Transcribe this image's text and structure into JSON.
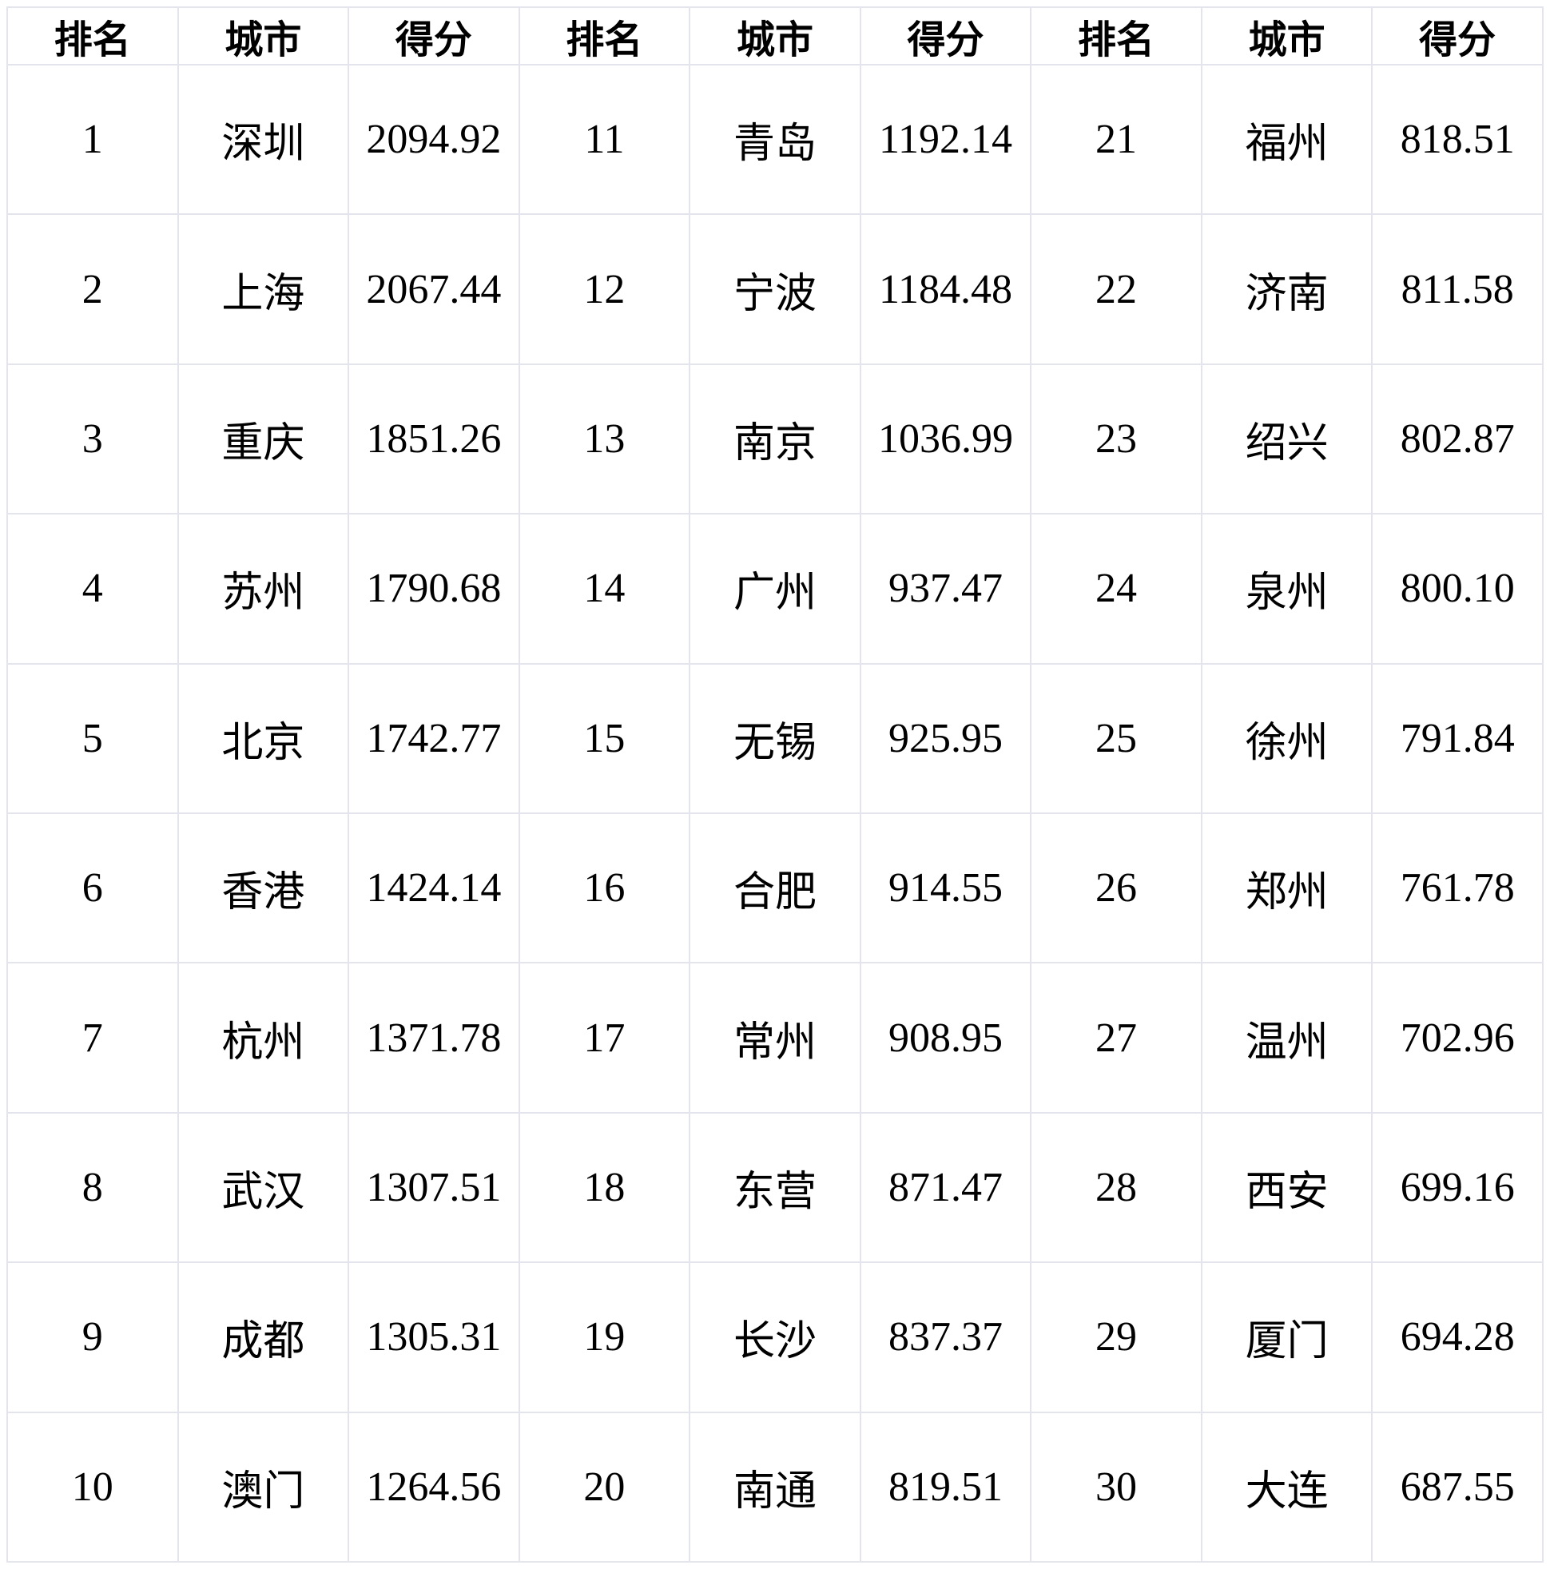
{
  "table": {
    "columns": [
      "排名",
      "城市",
      "得分",
      "排名",
      "城市",
      "得分",
      "排名",
      "城市",
      "得分"
    ],
    "rows": [
      [
        "1",
        "深圳",
        "2094.92",
        "11",
        "青岛",
        "1192.14",
        "21",
        "福州",
        "818.51"
      ],
      [
        "2",
        "上海",
        "2067.44",
        "12",
        "宁波",
        "1184.48",
        "22",
        "济南",
        "811.58"
      ],
      [
        "3",
        "重庆",
        "1851.26",
        "13",
        "南京",
        "1036.99",
        "23",
        "绍兴",
        "802.87"
      ],
      [
        "4",
        "苏州",
        "1790.68",
        "14",
        "广州",
        "937.47",
        "24",
        "泉州",
        "800.10"
      ],
      [
        "5",
        "北京",
        "1742.77",
        "15",
        "无锡",
        "925.95",
        "25",
        "徐州",
        "791.84"
      ],
      [
        "6",
        "香港",
        "1424.14",
        "16",
        "合肥",
        "914.55",
        "26",
        "郑州",
        "761.78"
      ],
      [
        "7",
        "杭州",
        "1371.78",
        "17",
        "常州",
        "908.95",
        "27",
        "温州",
        "702.96"
      ],
      [
        "8",
        "武汉",
        "1307.51",
        "18",
        "东营",
        "871.47",
        "28",
        "西安",
        "699.16"
      ],
      [
        "9",
        "成都",
        "1305.31",
        "19",
        "长沙",
        "837.37",
        "29",
        "厦门",
        "694.28"
      ],
      [
        "10",
        "澳门",
        "1264.56",
        "20",
        "南通",
        "819.51",
        "30",
        "大连",
        "687.55"
      ]
    ]
  },
  "chart_data": {
    "type": "table",
    "columns": [
      "排名",
      "城市",
      "得分",
      "排名",
      "城市",
      "得分",
      "排名",
      "城市",
      "得分"
    ],
    "rows": [
      [
        1,
        "深圳",
        2094.92,
        11,
        "青岛",
        1192.14,
        21,
        "福州",
        818.51
      ],
      [
        2,
        "上海",
        2067.44,
        12,
        "宁波",
        1184.48,
        22,
        "济南",
        811.58
      ],
      [
        3,
        "重庆",
        1851.26,
        13,
        "南京",
        1036.99,
        23,
        "绍兴",
        802.87
      ],
      [
        4,
        "苏州",
        1790.68,
        14,
        "广州",
        937.47,
        24,
        "泉州",
        800.1
      ],
      [
        5,
        "北京",
        1742.77,
        15,
        "无锡",
        925.95,
        25,
        "徐州",
        791.84
      ],
      [
        6,
        "香港",
        1424.14,
        16,
        "合肥",
        914.55,
        26,
        "郑州",
        761.78
      ],
      [
        7,
        "杭州",
        1371.78,
        17,
        "常州",
        908.95,
        27,
        "温州",
        702.96
      ],
      [
        8,
        "武汉",
        1307.51,
        18,
        "东营",
        871.47,
        28,
        "西安",
        699.16
      ],
      [
        9,
        "成都",
        1305.31,
        19,
        "长沙",
        837.37,
        29,
        "厦门",
        694.28
      ],
      [
        10,
        "澳门",
        1264.56,
        20,
        "南通",
        819.51,
        30,
        "大连",
        687.55
      ]
    ],
    "title": "",
    "notes": "30 cities ranked by score, laid out as three rank/city/score column groups"
  },
  "colors": {
    "background": "#ffffff",
    "grid_line": "#e4e4ec",
    "text": "#000000"
  }
}
